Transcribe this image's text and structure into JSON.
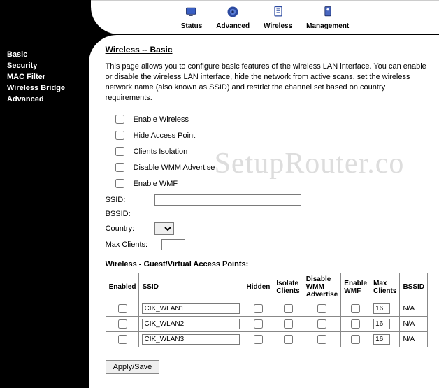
{
  "watermark": "SetupRouter.co",
  "top_nav": {
    "items": [
      {
        "label": "Status",
        "icon": "status"
      },
      {
        "label": "Advanced",
        "icon": "advanced"
      },
      {
        "label": "Wireless",
        "icon": "wireless"
      },
      {
        "label": "Management",
        "icon": "management"
      }
    ]
  },
  "sidebar": {
    "items": [
      "Basic",
      "Security",
      "MAC Filter",
      "Wireless Bridge",
      "Advanced"
    ]
  },
  "page": {
    "title": "Wireless -- Basic",
    "description": "This page allows you to configure basic features of the wireless LAN interface. You can enable or disable the wireless LAN interface, hide the network from active scans, set the wireless network name (also known as SSID) and restrict the channel set based on country requirements.",
    "checkboxes": [
      "Enable Wireless",
      "Hide Access Point",
      "Clients Isolation",
      "Disable WMM Advertise",
      "Enable WMF"
    ],
    "fields": {
      "ssid_label": "SSID:",
      "ssid_value": "",
      "bssid_label": "BSSID:",
      "country_label": "Country:",
      "country_value": "",
      "maxclients_label": "Max Clients:",
      "maxclients_value": ""
    },
    "vap_title": "Wireless - Guest/Virtual Access Points:",
    "vap_headers": [
      "Enabled",
      "SSID",
      "Hidden",
      "Isolate Clients",
      "Disable WMM Advertise",
      "Enable WMF",
      "Max Clients",
      "BSSID"
    ],
    "vap_rows": [
      {
        "enabled": false,
        "ssid": "CIK_WLAN1",
        "hidden": false,
        "isolate": false,
        "disable_wmm": false,
        "enable_wmf": false,
        "max_clients": "16",
        "bssid": "N/A"
      },
      {
        "enabled": false,
        "ssid": "CIK_WLAN2",
        "hidden": false,
        "isolate": false,
        "disable_wmm": false,
        "enable_wmf": false,
        "max_clients": "16",
        "bssid": "N/A"
      },
      {
        "enabled": false,
        "ssid": "CIK_WLAN3",
        "hidden": false,
        "isolate": false,
        "disable_wmm": false,
        "enable_wmf": false,
        "max_clients": "16",
        "bssid": "N/A"
      }
    ],
    "apply_label": "Apply/Save"
  },
  "colors": {
    "sidebar_bg": "#000000",
    "sidebar_fg": "#ffffff",
    "content_bg": "#ffffff",
    "border": "#888888",
    "watermark": "#dddddd"
  }
}
